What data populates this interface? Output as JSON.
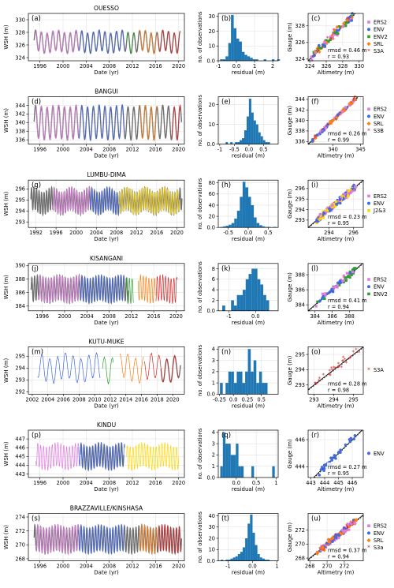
{
  "figure": {
    "colors": {
      "gauge": "#707070",
      "hist": "#1f77b4",
      "ERS2": "#e07be0",
      "ENV": "#4169e1",
      "ENV2": "#2ca02c",
      "SRL": "#ff7f0e",
      "S3A": "#d62728",
      "S3B": "#d62728",
      "J2&3": "#ffd700",
      "S3a": "#d62728"
    },
    "timeseries_ylabel": "WSH (m)",
    "timeseries_xlabel": "Date (yr)",
    "hist_ylabel": "no. of observations",
    "hist_xlabel": "residual (m)",
    "scatter_ylabel": "Gauge (m)",
    "scatter_xlabel": "Altimetry (m)"
  },
  "chart_data": [
    {
      "station": "OUESSO",
      "ts": {
        "letter": "(a)",
        "xlim": [
          1994,
          2021
        ],
        "xticks": [
          1996,
          2000,
          2004,
          2008,
          2012,
          2016,
          2020
        ],
        "ylim": [
          323.5,
          331
        ],
        "yticks": [
          324,
          326,
          328,
          330
        ],
        "mean": 326.5,
        "amp": 1.6,
        "period": 1.0,
        "start": 1995,
        "end": 2020.3,
        "segments": [
          {
            "m": "ERS2",
            "s": 1995.3,
            "e": 2003
          },
          {
            "m": "ENV",
            "s": 2002.7,
            "e": 2010.7
          },
          {
            "m": "ENV2",
            "s": 2011,
            "e": 2012.4
          },
          {
            "m": "SRL",
            "s": 2013.2,
            "e": 2016.3
          },
          {
            "m": "S3A",
            "s": 2016.4,
            "e": 2020.2
          }
        ]
      },
      "hist": {
        "letter": "(b)",
        "xlim": [
          -1,
          2.3
        ],
        "xticks": [
          -1,
          0,
          1,
          2
        ],
        "ylim": [
          0,
          32
        ],
        "yticks": [
          0,
          10,
          20,
          30
        ],
        "bin_start": -0.9,
        "bin_width": 0.15,
        "counts": [
          1,
          1,
          3,
          12,
          31,
          22,
          15,
          13,
          6,
          4,
          3,
          2,
          1,
          1,
          0,
          0,
          1,
          0,
          0,
          1,
          0,
          1
        ]
      },
      "scatter": {
        "letter": "(c)",
        "xlim": [
          323.8,
          330.5
        ],
        "ylim": [
          323.8,
          329.5
        ],
        "xticks": [
          324,
          326,
          328,
          330
        ],
        "yticks": [
          324,
          326,
          328
        ],
        "rmsd": "rmsd = 0.46 m",
        "r": "r  = 0.93",
        "legend": [
          "ERS2",
          "ENV",
          "ENV2",
          "SRL",
          "S3A"
        ],
        "n": 110,
        "lo": 324.2,
        "hi": 329.2,
        "noise": 0.45
      }
    },
    {
      "station": "BANGUI",
      "ts": {
        "letter": "(d)",
        "xlim": [
          1994,
          2021
        ],
        "xticks": [
          1996,
          2000,
          2004,
          2008,
          2012,
          2016,
          2020
        ],
        "ylim": [
          335,
          346
        ],
        "yticks": [
          336,
          338,
          340,
          342,
          344
        ],
        "mean": 340,
        "amp": 3.8,
        "period": 1.0,
        "start": 1995,
        "end": 2020.5,
        "segments": [
          {
            "m": "ERS2",
            "s": 1995.3,
            "e": 2003
          },
          {
            "m": "ENV",
            "s": 2002.7,
            "e": 2010.7
          },
          {
            "m": "SRL",
            "s": 2013.2,
            "e": 2016.3
          },
          {
            "m": "S3B",
            "s": 2018.8,
            "e": 2020.4
          }
        ]
      },
      "hist": {
        "letter": "(e)",
        "xlim": [
          -1.05,
          1
        ],
        "xticks": [
          -1.0,
          -0.5,
          0.0,
          0.5
        ],
        "ylim": [
          0,
          24
        ],
        "yticks": [
          0,
          10,
          20
        ],
        "bin_start": -0.8,
        "bin_width": 0.08,
        "counts": [
          1,
          0,
          1,
          0,
          1,
          1,
          2,
          3,
          7,
          14,
          23,
          16,
          12,
          10,
          6,
          4,
          2,
          1,
          1
        ]
      },
      "scatter": {
        "letter": "(f)",
        "xlim": [
          335.5,
          345.5
        ],
        "ylim": [
          335.5,
          344.5
        ],
        "xticks": [
          340,
          345
        ],
        "yticks": [
          336,
          338,
          340,
          342,
          344
        ],
        "rmsd": "rmsd = 0.26 m",
        "r": "r  = 0.99",
        "legend": [
          "ERS2",
          "ENV",
          "SRL",
          "S3B"
        ],
        "n": 120,
        "lo": 336.2,
        "hi": 344.2,
        "noise": 0.25
      }
    },
    {
      "station": "LUMBU-DIMA",
      "ts": {
        "letter": "(g)",
        "xlim": [
          1990.5,
          2021.5
        ],
        "xticks": [
          1992,
          1996,
          2000,
          2004,
          2008,
          2012,
          2016,
          2020
        ],
        "ylim": [
          292.5,
          296.8
        ],
        "yticks": [
          293,
          294,
          295,
          296
        ],
        "mean": 294.9,
        "amp": 1.0,
        "period": 0.5,
        "start": 1991,
        "end": 2021,
        "segments": [
          {
            "m": "ERS2",
            "s": 1995.3,
            "e": 2003
          },
          {
            "m": "ENV",
            "s": 2002.7,
            "e": 2010.7
          },
          {
            "m": "J2&3",
            "s": 2008.5,
            "e": 2020.5
          }
        ]
      },
      "hist": {
        "letter": "(h)",
        "xlim": [
          -0.75,
          0.75
        ],
        "xticks": [
          -0.5,
          0.0,
          0.5
        ],
        "ylim": [
          0,
          85
        ],
        "yticks": [
          0,
          20,
          40,
          60,
          80
        ],
        "bin_start": -0.7,
        "bin_width": 0.07,
        "counts": [
          1,
          2,
          3,
          5,
          8,
          16,
          30,
          55,
          82,
          72,
          55,
          40,
          18,
          8,
          4,
          2,
          1,
          1,
          0,
          1
        ]
      },
      "scatter": {
        "letter": "(i)",
        "xlim": [
          292.3,
          296.8
        ],
        "ylim": [
          292.3,
          296.8
        ],
        "xticks": [
          294,
          296
        ],
        "yticks": [
          293,
          294,
          295,
          296
        ],
        "rmsd": "rmsd = 0.23 m",
        "r": "r  = 0.95",
        "legend": [
          "ERS2",
          "ENV",
          "J2&3"
        ],
        "n": 220,
        "lo": 293.0,
        "hi": 296.2,
        "noise": 0.22
      }
    },
    {
      "station": "KISANGANI",
      "ts": {
        "letter": "(j)",
        "xlim": [
          1993.5,
          2021.5
        ],
        "xticks": [
          1996,
          2000,
          2004,
          2008,
          2012,
          2016,
          2020
        ],
        "ylim": [
          383.3,
          390.3
        ],
        "yticks": [
          384,
          386,
          388,
          390
        ],
        "mean": 386.5,
        "amp": 1.8,
        "period": 0.5,
        "start": 1994,
        "end": 2011.5,
        "segments": [
          {
            "m": "ERS2",
            "s": 1995.3,
            "e": 2003
          },
          {
            "m": "ENV",
            "s": 2002.7,
            "e": 2010.7
          },
          {
            "m": "ENV2",
            "s": 2011,
            "e": 2012.4
          },
          {
            "m": "SRL",
            "s": 2013.2,
            "e": 2016.3
          },
          {
            "m": "S3A",
            "s": 2016.4,
            "e": 2020.2
          }
        ]
      },
      "hist": {
        "letter": "(k)",
        "xlim": [
          -1.4,
          0.85
        ],
        "xticks": [
          -1,
          0
        ],
        "ylim": [
          0,
          9
        ],
        "yticks": [
          0,
          2,
          4,
          6,
          8
        ],
        "bin_start": -1.25,
        "bin_width": 0.11,
        "counts": [
          1,
          0,
          0,
          2,
          1,
          3,
          3,
          4,
          6,
          7,
          8,
          8,
          6,
          5,
          3,
          2
        ]
      },
      "scatter": {
        "letter": "(l)",
        "xlim": [
          383.2,
          389.6
        ],
        "ylim": [
          383.2,
          389.5
        ],
        "xticks": [
          384,
          386,
          388
        ],
        "yticks": [
          384,
          386,
          388
        ],
        "rmsd": "rmsd = 0.41 m",
        "r": "r  = 0.94",
        "legend": [
          "ERS2",
          "ENV",
          "ENV2"
        ],
        "n": 70,
        "lo": 384.0,
        "hi": 388.8,
        "noise": 0.4
      }
    },
    {
      "station": "KUTU-MUKE",
      "ts": {
        "letter": "(m)",
        "xlim": [
          2001.5,
          2021.5
        ],
        "xticks": [
          2002,
          2004,
          2006,
          2008,
          2010,
          2012,
          2014,
          2016,
          2018,
          2020
        ],
        "ylim": [
          291.8,
          295.8
        ],
        "yticks": [
          292,
          293,
          294,
          295
        ],
        "mean": 294,
        "amp": 1.0,
        "period": 1.0,
        "start": 2018.5,
        "end": 2021,
        "segments": [
          {
            "m": "ENV",
            "s": 2002.7,
            "e": 2010.7
          },
          {
            "m": "ENV2",
            "s": 2011,
            "e": 2012.4
          },
          {
            "m": "SRL",
            "s": 2013.2,
            "e": 2016.3
          },
          {
            "m": "S3A",
            "s": 2016.4,
            "e": 2020.8
          }
        ]
      },
      "hist": {
        "letter": "(n)",
        "xlim": [
          -0.27,
          0.8
        ],
        "xticks": [
          -0.25,
          0.0,
          0.25,
          0.5
        ],
        "ylim": [
          0,
          4.2
        ],
        "yticks": [
          0,
          1,
          2,
          3,
          4
        ],
        "bin_start": -0.24,
        "bin_width": 0.05,
        "counts": [
          1,
          0,
          1,
          2,
          2,
          1,
          2,
          2,
          1,
          2,
          4,
          2,
          3,
          1,
          2,
          1,
          1
        ]
      },
      "scatter": {
        "letter": "(o)",
        "xlim": [
          292.7,
          295.5
        ],
        "ylim": [
          292.4,
          295.5
        ],
        "xticks": [
          293,
          294,
          295
        ],
        "yticks": [
          293,
          294,
          295
        ],
        "rmsd": "rmsd = 0.28 m",
        "r": "r  = 0.98",
        "legend": [
          "S3A"
        ],
        "n": 28,
        "lo": 293.0,
        "hi": 295.3,
        "noise": 0.25
      }
    },
    {
      "station": "KINDU",
      "ts": {
        "letter": "(p)",
        "xlim": [
          1994,
          2021
        ],
        "xticks": [
          1996,
          2000,
          2004,
          2008,
          2012,
          2016,
          2020
        ],
        "ylim": [
          442.6,
          448
        ],
        "yticks": [
          443,
          444,
          445,
          446,
          447
        ],
        "mean": 445,
        "amp": 1.3,
        "period": 0.5,
        "start": 2003,
        "end": 2010.5,
        "segments": [
          {
            "m": "ERS2",
            "s": 1995.3,
            "e": 2003
          },
          {
            "m": "ENV",
            "s": 2002.7,
            "e": 2010.7
          },
          {
            "m": "J2&3",
            "s": 2011,
            "e": 2020
          }
        ]
      },
      "hist": {
        "letter": "(q)",
        "xlim": [
          -0.45,
          1.05
        ],
        "xticks": [
          0.0,
          0.5,
          1.0
        ],
        "ylim": [
          0,
          4.2
        ],
        "yticks": [
          0,
          1,
          2,
          3,
          4
        ],
        "bin_start": -0.4,
        "bin_width": 0.065,
        "counts": [
          1,
          4,
          3,
          3,
          2,
          2,
          3,
          1,
          1,
          0,
          0,
          0,
          1,
          0,
          0,
          0,
          0,
          0,
          0,
          0,
          1
        ]
      },
      "scatter": {
        "letter": "(r)",
        "xlim": [
          442.8,
          446.8
        ],
        "ylim": [
          443.2,
          446.7
        ],
        "xticks": [
          443,
          444,
          445,
          446
        ],
        "yticks": [
          444,
          446
        ],
        "rmsd": "rmsd = 0.27 m",
        "r": "r  = 0.95",
        "legend": [
          "ENV"
        ],
        "n": 30,
        "lo": 443.6,
        "hi": 446.2,
        "noise": 0.25
      }
    },
    {
      "station": "BRAZZAVILLE/KINSHASA",
      "ts": {
        "letter": "(s)",
        "xlim": [
          1994,
          2021
        ],
        "xticks": [
          1996,
          2000,
          2004,
          2008,
          2012,
          2016,
          2020
        ],
        "ylim": [
          267.7,
          274.5
        ],
        "yticks": [
          268,
          270,
          272,
          274
        ],
        "mean": 270.8,
        "amp": 1.8,
        "period": 0.5,
        "start": 1995,
        "end": 2020.5,
        "segments": [
          {
            "m": "ERS2",
            "s": 1995.3,
            "e": 2003
          },
          {
            "m": "ENV",
            "s": 2002.7,
            "e": 2010.7
          },
          {
            "m": "SRL",
            "s": 2013.2,
            "e": 2016.3
          },
          {
            "m": "S3a",
            "s": 2016.4,
            "e": 2020.4
          }
        ]
      },
      "hist": {
        "letter": "(t)",
        "xlim": [
          -1.4,
          1.05
        ],
        "xticks": [
          -1,
          0,
          1
        ],
        "ylim": [
          0,
          42
        ],
        "yticks": [
          0,
          10,
          20,
          30,
          40
        ],
        "bin_start": -1.3,
        "bin_width": 0.1,
        "counts": [
          1,
          0,
          1,
          1,
          2,
          3,
          4,
          6,
          8,
          12,
          20,
          33,
          41,
          25,
          14,
          6,
          3,
          2,
          1,
          1
        ]
      },
      "scatter": {
        "letter": "(u)",
        "xlim": [
          267.8,
          274.2
        ],
        "ylim": [
          267.6,
          274.4
        ],
        "xticks": [
          268,
          270,
          272
        ],
        "yticks": [
          268,
          270,
          272
        ],
        "rmsd": "rmsd = 0.37 m",
        "r": "r  = 0.94",
        "legend": [
          "ERS2",
          "ENV",
          "SRL",
          "S3a"
        ],
        "n": 160,
        "lo": 268.8,
        "hi": 273.4,
        "noise": 0.35
      }
    }
  ]
}
